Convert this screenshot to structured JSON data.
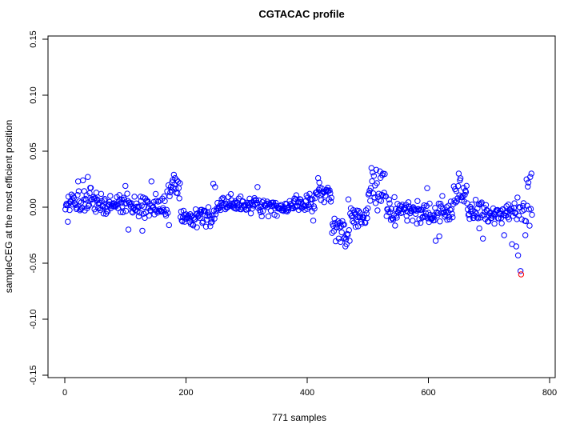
{
  "chart_data": {
    "type": "scatter",
    "title": "CGTACAC profile",
    "xlabel": "771 samples",
    "ylabel": "sampleCEG at the most efficient position",
    "xlim": [
      -30,
      800
    ],
    "ylim": [
      -0.15,
      0.15
    ],
    "xticks": [
      0,
      200,
      400,
      600,
      800
    ],
    "xtick_labels": [
      "0",
      "200",
      "400",
      "600",
      "800"
    ],
    "yticks": [
      -0.15,
      -0.1,
      -0.05,
      0.0,
      0.05,
      0.1,
      0.15
    ],
    "ytick_labels": [
      "-0.15",
      "-0.10",
      "-0.05",
      "0.00",
      "0.05",
      "0.10",
      "0.15"
    ],
    "grid": false,
    "marker": "open-circle",
    "colors": {
      "points": "#0000ff",
      "highlight": "#ff0000",
      "axis": "#000000"
    },
    "n_samples": 771,
    "segments": [
      {
        "x0": 1,
        "x1": 60,
        "mean": 0.004,
        "spread": 0.01
      },
      {
        "x0": 61,
        "x1": 110,
        "mean": 0.002,
        "spread": 0.01
      },
      {
        "x0": 111,
        "x1": 170,
        "mean": 0.0,
        "spread": 0.011
      },
      {
        "x0": 171,
        "x1": 190,
        "mean": 0.018,
        "spread": 0.007
      },
      {
        "x0": 191,
        "x1": 250,
        "mean": -0.008,
        "spread": 0.007
      },
      {
        "x0": 251,
        "x1": 320,
        "mean": 0.002,
        "spread": 0.006
      },
      {
        "x0": 321,
        "x1": 370,
        "mean": 0.0,
        "spread": 0.006
      },
      {
        "x0": 371,
        "x1": 412,
        "mean": 0.003,
        "spread": 0.007
      },
      {
        "x0": 413,
        "x1": 440,
        "mean": 0.012,
        "spread": 0.008
      },
      {
        "x0": 441,
        "x1": 470,
        "mean": -0.018,
        "spread": 0.012
      },
      {
        "x0": 471,
        "x1": 500,
        "mean": -0.008,
        "spread": 0.008
      },
      {
        "x0": 501,
        "x1": 530,
        "mean": 0.012,
        "spread": 0.014
      },
      {
        "x0": 531,
        "x1": 600,
        "mean": -0.004,
        "spread": 0.009
      },
      {
        "x0": 601,
        "x1": 640,
        "mean": -0.006,
        "spread": 0.011
      },
      {
        "x0": 641,
        "x1": 665,
        "mean": 0.01,
        "spread": 0.011
      },
      {
        "x0": 666,
        "x1": 740,
        "mean": -0.006,
        "spread": 0.009
      },
      {
        "x0": 741,
        "x1": 771,
        "mean": -0.004,
        "spread": 0.018
      }
    ],
    "notable_points": [
      {
        "x": 5,
        "y": -0.013
      },
      {
        "x": 22,
        "y": 0.023
      },
      {
        "x": 30,
        "y": 0.024
      },
      {
        "x": 38,
        "y": 0.027
      },
      {
        "x": 100,
        "y": 0.019
      },
      {
        "x": 105,
        "y": -0.02
      },
      {
        "x": 128,
        "y": -0.021
      },
      {
        "x": 143,
        "y": 0.023
      },
      {
        "x": 172,
        "y": -0.016
      },
      {
        "x": 180,
        "y": 0.029
      },
      {
        "x": 182,
        "y": 0.026
      },
      {
        "x": 185,
        "y": 0.024
      },
      {
        "x": 240,
        "y": -0.017
      },
      {
        "x": 245,
        "y": 0.021
      },
      {
        "x": 248,
        "y": 0.018
      },
      {
        "x": 318,
        "y": 0.018
      },
      {
        "x": 410,
        "y": -0.012
      },
      {
        "x": 418,
        "y": 0.026
      },
      {
        "x": 420,
        "y": 0.022
      },
      {
        "x": 448,
        "y": -0.018
      },
      {
        "x": 452,
        "y": -0.028
      },
      {
        "x": 455,
        "y": -0.031
      },
      {
        "x": 460,
        "y": -0.028
      },
      {
        "x": 463,
        "y": -0.035
      },
      {
        "x": 465,
        "y": -0.033
      },
      {
        "x": 470,
        "y": -0.03
      },
      {
        "x": 468,
        "y": 0.007
      },
      {
        "x": 506,
        "y": 0.035
      },
      {
        "x": 508,
        "y": 0.031
      },
      {
        "x": 510,
        "y": 0.028
      },
      {
        "x": 520,
        "y": 0.032
      },
      {
        "x": 525,
        "y": 0.03
      },
      {
        "x": 598,
        "y": 0.017
      },
      {
        "x": 612,
        "y": -0.03
      },
      {
        "x": 618,
        "y": -0.026
      },
      {
        "x": 650,
        "y": 0.03
      },
      {
        "x": 652,
        "y": 0.024
      },
      {
        "x": 690,
        "y": -0.028
      },
      {
        "x": 725,
        "y": -0.025
      },
      {
        "x": 738,
        "y": -0.033
      },
      {
        "x": 745,
        "y": -0.035
      },
      {
        "x": 748,
        "y": -0.043
      },
      {
        "x": 752,
        "y": -0.057
      },
      {
        "x": 760,
        "y": -0.025
      },
      {
        "x": 765,
        "y": 0.022
      },
      {
        "x": 768,
        "y": 0.027
      },
      {
        "x": 770,
        "y": 0.03
      }
    ],
    "highlighted_point": {
      "x": 753,
      "y": -0.06
    }
  }
}
